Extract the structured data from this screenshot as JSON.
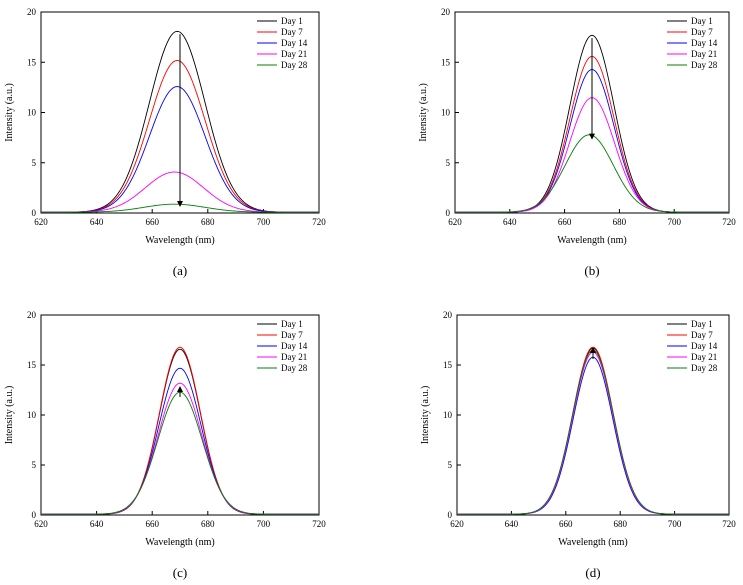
{
  "chart_data": [
    {
      "panel": "a",
      "type": "line",
      "caption": "(a)",
      "xlabel": "Wavelength (nm)",
      "ylabel": "Intensity (a.u.)",
      "xlim": [
        620,
        720
      ],
      "ylim": [
        0,
        20
      ],
      "xticks": [
        620,
        640,
        660,
        680,
        700,
        720
      ],
      "yticks": [
        0,
        5,
        10,
        15,
        20
      ],
      "legend_position": "top-right",
      "arrow": {
        "x": 670,
        "from": 17.8,
        "to": 0.9
      },
      "series": [
        {
          "name": "Day 1",
          "color": "#000000",
          "peak": 18.0,
          "center": 669,
          "width": 10.0
        },
        {
          "name": "Day 7",
          "color": "#ff0000",
          "peak": 15.1,
          "center": 669,
          "width": 10.0
        },
        {
          "name": "Day 14",
          "color": "#0000ff",
          "peak": 12.5,
          "center": 669,
          "width": 10.0
        },
        {
          "name": "Day 21",
          "color": "#ff00ff",
          "peak": 4.0,
          "center": 668,
          "width": 10.5
        },
        {
          "name": "Day 28",
          "color": "#008000",
          "peak": 0.8,
          "center": 668,
          "width": 11.0
        }
      ]
    },
    {
      "panel": "b",
      "type": "line",
      "caption": "(b)",
      "xlabel": "Wavelength (nm)",
      "ylabel": "Intensity (a.u.)",
      "xlim": [
        620,
        720
      ],
      "ylim": [
        0,
        20
      ],
      "xticks": [
        620,
        640,
        660,
        680,
        700,
        720
      ],
      "yticks": [
        0,
        5,
        10,
        15,
        20
      ],
      "legend_position": "top-right",
      "arrow": {
        "x": 670,
        "from": 17.4,
        "to": 7.6
      },
      "series": [
        {
          "name": "Day 1",
          "color": "#000000",
          "peak": 17.6,
          "center": 670,
          "width": 8.0
        },
        {
          "name": "Day 7",
          "color": "#ff0000",
          "peak": 15.5,
          "center": 670,
          "width": 8.0
        },
        {
          "name": "Day 14",
          "color": "#0000ff",
          "peak": 14.2,
          "center": 670,
          "width": 8.0
        },
        {
          "name": "Day 21",
          "color": "#ff00ff",
          "peak": 11.4,
          "center": 670,
          "width": 8.2
        },
        {
          "name": "Day 28",
          "color": "#008000",
          "peak": 7.7,
          "center": 669,
          "width": 8.8
        }
      ]
    },
    {
      "panel": "c",
      "type": "line",
      "caption": "(c)",
      "xlabel": "Wavelength (nm)",
      "ylabel": "Intensity (a.u.)",
      "xlim": [
        620,
        720
      ],
      "ylim": [
        0,
        20
      ],
      "xticks": [
        620,
        640,
        660,
        680,
        700,
        720
      ],
      "yticks": [
        0,
        5,
        10,
        15,
        20
      ],
      "legend_position": "top-right",
      "arrow": {
        "x": 670,
        "from": 11.8,
        "to": 12.6
      },
      "series": [
        {
          "name": "Day 1",
          "color": "#000000",
          "peak": 16.5,
          "center": 670,
          "width": 7.4
        },
        {
          "name": "Day 7",
          "color": "#ff0000",
          "peak": 16.7,
          "center": 670,
          "width": 7.4
        },
        {
          "name": "Day 14",
          "color": "#0000ff",
          "peak": 14.6,
          "center": 670,
          "width": 7.6
        },
        {
          "name": "Day 21",
          "color": "#ff00ff",
          "peak": 13.1,
          "center": 670,
          "width": 7.8
        },
        {
          "name": "Day 28",
          "color": "#008000",
          "peak": 12.2,
          "center": 670,
          "width": 8.0
        }
      ]
    },
    {
      "panel": "d",
      "type": "line",
      "caption": "(d)",
      "xlabel": "Wavelength (nm)",
      "ylabel": "Intensity (a.u.)",
      "xlim": [
        620,
        720
      ],
      "ylim": [
        0,
        20
      ],
      "xticks": [
        620,
        640,
        660,
        680,
        700,
        720
      ],
      "yticks": [
        0,
        5,
        10,
        15,
        20
      ],
      "legend_position": "top-right",
      "arrow": {
        "x": 670,
        "from": 15.6,
        "to": 16.5
      },
      "series": [
        {
          "name": "Day 1",
          "color": "#000000",
          "peak": 16.6,
          "center": 670,
          "width": 7.4
        },
        {
          "name": "Day 7",
          "color": "#ff0000",
          "peak": 16.7,
          "center": 670,
          "width": 7.4
        },
        {
          "name": "Day 14",
          "color": "#0000ff",
          "peak": 15.7,
          "center": 670,
          "width": 7.3
        },
        {
          "name": "Day 21",
          "color": "#ff00ff",
          "peak": 16.2,
          "center": 670,
          "width": 7.4
        },
        {
          "name": "Day 28",
          "color": "#008000",
          "peak": 16.4,
          "center": 670,
          "width": 7.5
        }
      ]
    }
  ]
}
